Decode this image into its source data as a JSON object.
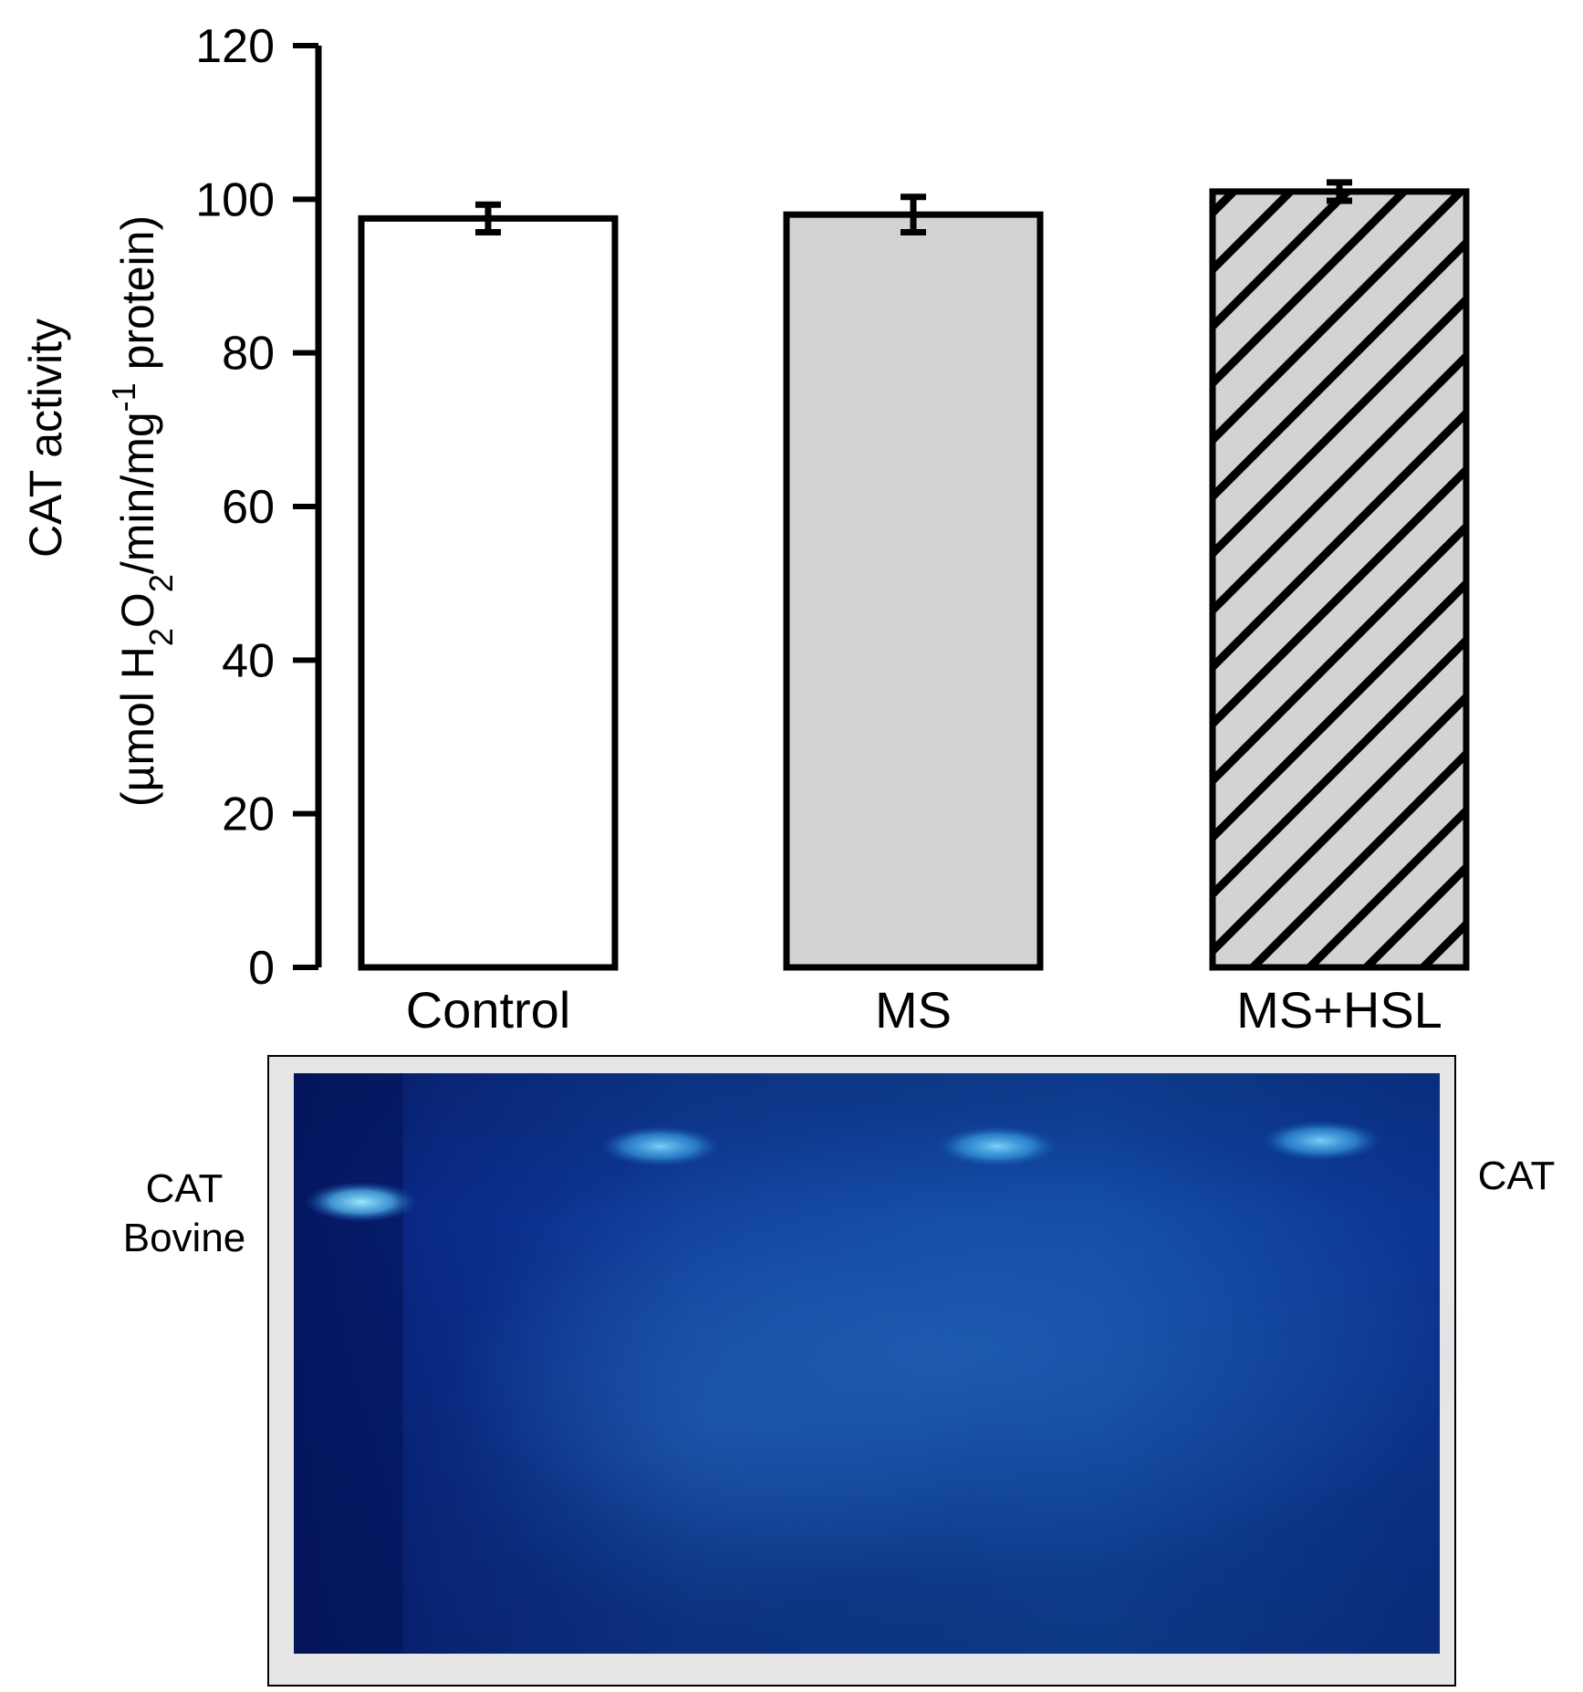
{
  "chart_data": {
    "type": "bar",
    "categories": [
      "Control",
      "MS",
      "MS+HSL"
    ],
    "values": [
      97.5,
      98,
      101
    ],
    "errors": [
      1.8,
      2.3,
      1.2
    ],
    "ylabel_line1": "CAT activity",
    "ylabel_line2_prefix": "(µmol H",
    "ylabel_sub1": "2",
    "ylabel_mid": "O",
    "ylabel_sub2": "2",
    "ylabel_mid2": "/min/mg",
    "ylabel_sup": "-1",
    "ylabel_suffix": " protein)",
    "ylim": [
      0,
      120
    ],
    "yticks": [
      0,
      20,
      40,
      60,
      80,
      100,
      120
    ],
    "bar_fills": [
      "#ffffff",
      "#d3d3d3",
      "#d3d3d3"
    ],
    "bar_hatched": [
      false,
      false,
      true
    ],
    "grid": false
  },
  "gel": {
    "label_left_line1": "CAT",
    "label_left_line2": "Bovine",
    "label_right": "CAT"
  }
}
